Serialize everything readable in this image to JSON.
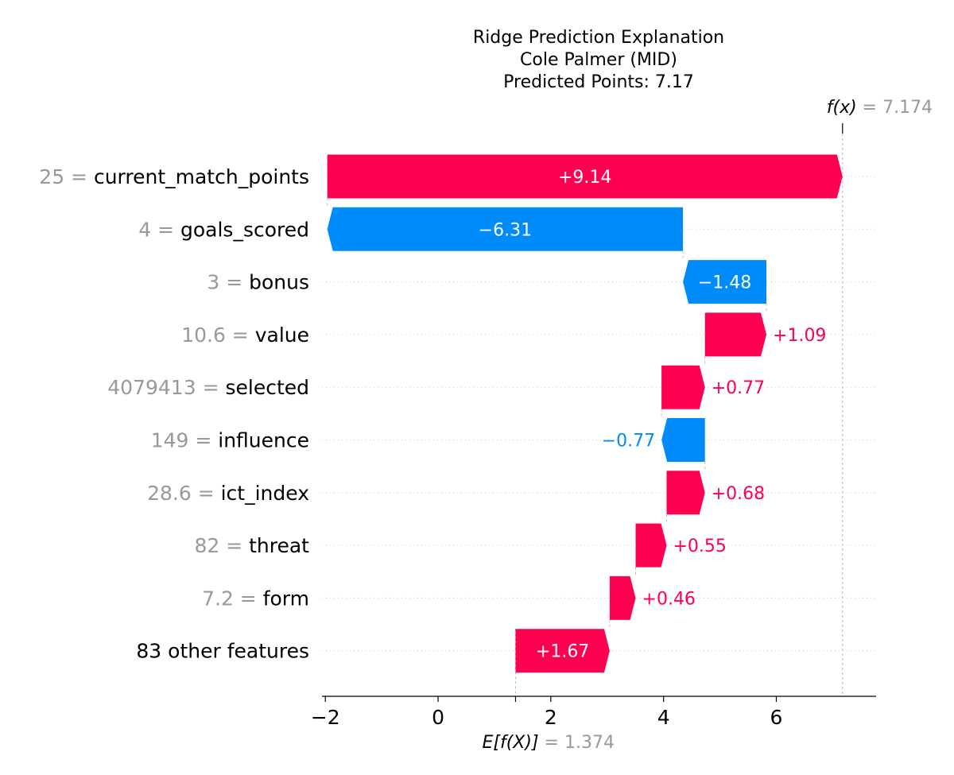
{
  "chart_data": {
    "type": "waterfall",
    "title_lines": [
      "Ridge Prediction Explanation",
      "Cole Palmer (MID)",
      "Predicted Points: 7.17"
    ],
    "base_value": 1.374,
    "final_value": 7.174,
    "base_label": {
      "expr": "E[f(X)]",
      "value_text": "= 1.374"
    },
    "final_label": {
      "expr": "f(x)",
      "value_text": "= 7.174"
    },
    "features": [
      {
        "value": "25",
        "name": "current_match_points",
        "shap": 9.14,
        "label": "+9.14"
      },
      {
        "value": "4",
        "name": "goals_scored",
        "shap": -6.31,
        "label": "−6.31"
      },
      {
        "value": "3",
        "name": "bonus",
        "shap": -1.48,
        "label": "−1.48"
      },
      {
        "value": "10.6",
        "name": "value",
        "shap": 1.09,
        "label": "+1.09"
      },
      {
        "value": "4079413",
        "name": "selected",
        "shap": 0.77,
        "label": "+0.77"
      },
      {
        "value": "149",
        "name": "influence",
        "shap": -0.77,
        "label": "−0.77"
      },
      {
        "value": "28.6",
        "name": "ict_index",
        "shap": 0.68,
        "label": "+0.68"
      },
      {
        "value": "82",
        "name": "threat",
        "shap": 0.55,
        "label": "+0.55"
      },
      {
        "value": "7.2",
        "name": "form",
        "shap": 0.46,
        "label": "+0.46"
      },
      {
        "value": "",
        "name": "83 other features",
        "shap": 1.67,
        "label": "+1.67"
      }
    ],
    "x_ticks": [
      -2,
      0,
      2,
      4,
      6
    ],
    "x_tick_labels": [
      "−2",
      "0",
      "2",
      "4",
      "6"
    ],
    "xlim": [
      -2.06,
      7.77
    ],
    "colors": {
      "positive": "#ff0051",
      "negative": "#008bfb",
      "value_gray": "#999999"
    }
  }
}
